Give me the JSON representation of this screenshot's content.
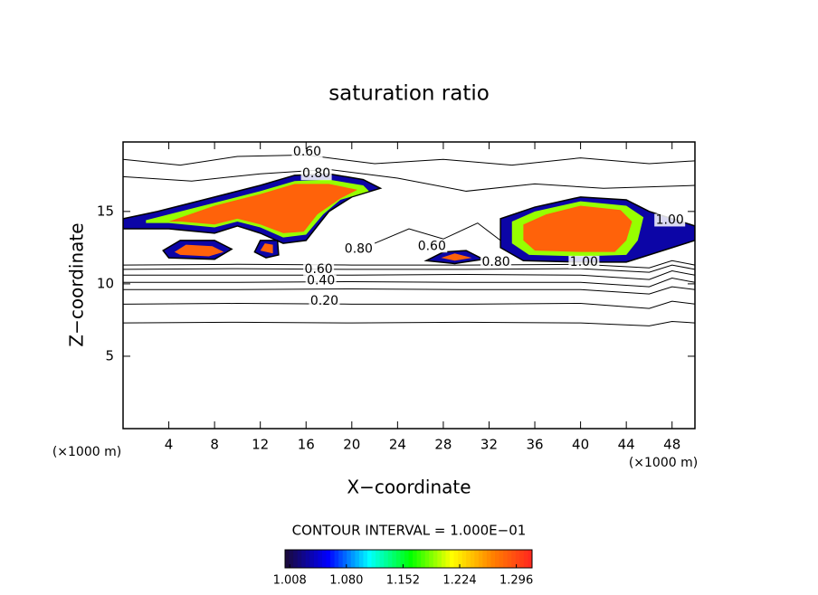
{
  "chart_data": {
    "type": "contour",
    "title": "saturation ratio",
    "xlabel": "X−coordinate",
    "ylabel": "Z−coordinate",
    "x_unit": "(×1000 m)",
    "y_unit": "(×1000 m)",
    "xlim": [
      0,
      50
    ],
    "ylim": [
      0,
      19.8
    ],
    "xticks": [
      4,
      8,
      12,
      16,
      20,
      24,
      28,
      32,
      36,
      40,
      44,
      48
    ],
    "yticks": [
      5,
      10,
      15
    ],
    "contour_interval": "CONTOUR INTERVAL = 1.000E−01",
    "colorbar": {
      "lim": [
        1.002,
        1.316
      ],
      "ticks": [
        {
          "value": 1.008,
          "label": "1.008"
        },
        {
          "value": 1.08,
          "label": "1.080"
        },
        {
          "value": 1.152,
          "label": "1.152"
        },
        {
          "value": 1.224,
          "label": "1.224"
        },
        {
          "value": 1.296,
          "label": "1.296"
        }
      ],
      "colors": [
        "#1a0a40",
        "#0000ff",
        "#00ffff",
        "#00ff00",
        "#ffff00",
        "#ff8000",
        "#ff2020"
      ]
    },
    "regions": [
      {
        "level": 1.03,
        "points": [
          [
            0,
            14.5
          ],
          [
            3,
            15
          ],
          [
            8,
            16
          ],
          [
            12,
            16.8
          ],
          [
            15,
            17.5
          ],
          [
            18,
            17.6
          ],
          [
            21,
            17.2
          ],
          [
            22.5,
            16.6
          ],
          [
            20,
            16
          ],
          [
            18,
            15
          ],
          [
            16,
            13
          ],
          [
            14,
            12.8
          ],
          [
            12,
            13.5
          ],
          [
            10,
            14
          ],
          [
            8,
            13.5
          ],
          [
            4,
            13.8
          ],
          [
            0,
            13.8
          ]
        ]
      },
      {
        "level": 1.19,
        "points": [
          [
            2,
            14.4
          ],
          [
            8,
            15.6
          ],
          [
            12,
            16.4
          ],
          [
            15,
            17.1
          ],
          [
            18,
            17.2
          ],
          [
            21,
            16.8
          ],
          [
            21.5,
            16.4
          ],
          [
            19,
            15.8
          ],
          [
            17.5,
            14.8
          ],
          [
            16,
            13.4
          ],
          [
            14,
            13.2
          ],
          [
            12,
            13.9
          ],
          [
            10,
            14.3
          ],
          [
            8,
            13.9
          ],
          [
            4,
            14.2
          ],
          [
            2,
            14.2
          ]
        ]
      },
      {
        "level": 1.28,
        "points": [
          [
            4,
            14.3
          ],
          [
            8,
            15.4
          ],
          [
            12,
            16.2
          ],
          [
            15,
            16.9
          ],
          [
            18,
            16.9
          ],
          [
            20.5,
            16.5
          ],
          [
            19,
            15.9
          ],
          [
            17,
            14.8
          ],
          [
            15.8,
            13.6
          ],
          [
            14,
            13.5
          ],
          [
            12,
            14.1
          ],
          [
            10,
            14.5
          ],
          [
            8,
            14.1
          ],
          [
            5,
            14.3
          ]
        ]
      },
      {
        "level": 1.03,
        "points": [
          [
            33,
            14.5
          ],
          [
            36,
            15.3
          ],
          [
            40,
            16
          ],
          [
            44,
            15.8
          ],
          [
            46,
            15
          ],
          [
            48,
            14.5
          ],
          [
            50,
            14
          ],
          [
            50,
            13
          ],
          [
            46,
            12
          ],
          [
            44,
            11.5
          ],
          [
            40,
            11.5
          ],
          [
            35,
            11.6
          ],
          [
            33,
            12.5
          ],
          [
            33,
            14
          ]
        ]
      },
      {
        "level": 1.19,
        "points": [
          [
            34,
            14.3
          ],
          [
            36,
            15
          ],
          [
            40,
            15.7
          ],
          [
            44,
            15.4
          ],
          [
            45.5,
            14.6
          ],
          [
            45,
            13
          ],
          [
            44,
            12
          ],
          [
            40,
            11.9
          ],
          [
            35.5,
            12
          ],
          [
            34,
            12.8
          ]
        ]
      },
      {
        "level": 1.28,
        "points": [
          [
            35,
            14.1
          ],
          [
            37,
            14.8
          ],
          [
            40,
            15.4
          ],
          [
            43.5,
            15.1
          ],
          [
            44.5,
            14.3
          ],
          [
            44,
            13
          ],
          [
            43,
            12.2
          ],
          [
            40,
            12.2
          ],
          [
            36,
            12.3
          ],
          [
            35,
            13
          ]
        ]
      },
      {
        "level": 1.03,
        "points": [
          [
            3.5,
            12.3
          ],
          [
            5,
            13
          ],
          [
            8,
            13
          ],
          [
            9.5,
            12.4
          ],
          [
            8,
            11.7
          ],
          [
            4,
            11.8
          ]
        ]
      },
      {
        "level": 1.28,
        "points": [
          [
            4.5,
            12.2
          ],
          [
            5.5,
            12.7
          ],
          [
            7.8,
            12.6
          ],
          [
            8.8,
            12.2
          ],
          [
            7.5,
            11.9
          ],
          [
            5,
            12
          ]
        ]
      },
      {
        "level": 1.03,
        "points": [
          [
            26.5,
            11.6
          ],
          [
            28,
            12.2
          ],
          [
            30,
            12.3
          ],
          [
            31.5,
            11.7
          ],
          [
            29,
            11.4
          ]
        ]
      },
      {
        "level": 1.28,
        "points": [
          [
            27.8,
            11.8
          ],
          [
            29,
            12.1
          ],
          [
            30.5,
            11.8
          ],
          [
            29,
            11.6
          ]
        ]
      },
      {
        "level": 1.03,
        "points": [
          [
            11.5,
            12.2
          ],
          [
            12,
            13
          ],
          [
            13.5,
            13
          ],
          [
            13.6,
            12
          ],
          [
            12.5,
            11.8
          ]
        ]
      },
      {
        "level": 1.28,
        "points": [
          [
            12,
            12.3
          ],
          [
            12.4,
            12.8
          ],
          [
            13.1,
            12.7
          ],
          [
            13.1,
            12.1
          ]
        ]
      }
    ],
    "contours": [
      {
        "level": 0.1,
        "points": [
          [
            0,
            7.3
          ],
          [
            10,
            7.35
          ],
          [
            20,
            7.3
          ],
          [
            30,
            7.35
          ],
          [
            40,
            7.3
          ],
          [
            46,
            7.1
          ],
          [
            48,
            7.4
          ],
          [
            50,
            7.3
          ]
        ]
      },
      {
        "level": 0.2,
        "points": [
          [
            0,
            8.6
          ],
          [
            10,
            8.65
          ],
          [
            20,
            8.6
          ],
          [
            30,
            8.6
          ],
          [
            40,
            8.65
          ],
          [
            46,
            8.3
          ],
          [
            48,
            8.8
          ],
          [
            50,
            8.6
          ]
        ]
      },
      {
        "level": 0.3,
        "points": [
          [
            0,
            9.6
          ],
          [
            10,
            9.6
          ],
          [
            20,
            9.65
          ],
          [
            30,
            9.6
          ],
          [
            40,
            9.6
          ],
          [
            46,
            9.3
          ],
          [
            48,
            9.8
          ],
          [
            50,
            9.6
          ]
        ]
      },
      {
        "level": 0.4,
        "points": [
          [
            0,
            10.1
          ],
          [
            10,
            10.1
          ],
          [
            20,
            10.15
          ],
          [
            30,
            10.1
          ],
          [
            40,
            10.1
          ],
          [
            46,
            9.8
          ],
          [
            48,
            10.4
          ],
          [
            50,
            10.1
          ]
        ]
      },
      {
        "level": 0.5,
        "points": [
          [
            0,
            10.6
          ],
          [
            10,
            10.6
          ],
          [
            20,
            10.6
          ],
          [
            30,
            10.65
          ],
          [
            40,
            10.6
          ],
          [
            46,
            10.3
          ],
          [
            48,
            10.9
          ],
          [
            50,
            10.6
          ]
        ]
      },
      {
        "level": 0.6,
        "points": [
          [
            0,
            11.0
          ],
          [
            10,
            11.05
          ],
          [
            20,
            11.0
          ],
          [
            30,
            11.0
          ],
          [
            40,
            11.05
          ],
          [
            46,
            10.8
          ],
          [
            48,
            11.3
          ],
          [
            50,
            11.0
          ]
        ]
      },
      {
        "level": 0.7,
        "points": [
          [
            0,
            11.3
          ],
          [
            10,
            11.35
          ],
          [
            20,
            11.3
          ],
          [
            30,
            11.3
          ],
          [
            40,
            11.35
          ],
          [
            46,
            11.1
          ],
          [
            48,
            11.6
          ],
          [
            50,
            11.3
          ]
        ]
      },
      {
        "level": 0.6,
        "points": [
          [
            0,
            18.6
          ],
          [
            5,
            18.2
          ],
          [
            10,
            18.8
          ],
          [
            16,
            18.9
          ],
          [
            22,
            18.3
          ],
          [
            28,
            18.6
          ],
          [
            34,
            18.2
          ],
          [
            40,
            18.7
          ],
          [
            46,
            18.3
          ],
          [
            50,
            18.5
          ]
        ]
      },
      {
        "level": 0.8,
        "points": [
          [
            0,
            17.4
          ],
          [
            6,
            17.1
          ],
          [
            12,
            17.6
          ],
          [
            18,
            17.9
          ],
          [
            24,
            17.3
          ],
          [
            30,
            16.4
          ],
          [
            36,
            16.9
          ],
          [
            42,
            16.6
          ],
          [
            50,
            16.8
          ]
        ]
      },
      {
        "level": 0.8,
        "points": [
          [
            22,
            12.8
          ],
          [
            25,
            13.8
          ],
          [
            28,
            13.1
          ],
          [
            31,
            14.2
          ],
          [
            33,
            13.0
          ]
        ]
      }
    ],
    "contour_labels": [
      {
        "text": "0.60",
        "x": 16.1,
        "y": 19.1
      },
      {
        "text": "0.80",
        "x": 16.9,
        "y": 17.6
      },
      {
        "text": "0.80",
        "x": 20.6,
        "y": 12.4
      },
      {
        "text": "0.60",
        "x": 17.1,
        "y": 11.0
      },
      {
        "text": "0.40",
        "x": 17.3,
        "y": 10.2
      },
      {
        "text": "0.20",
        "x": 17.6,
        "y": 8.8
      },
      {
        "text": "0.60",
        "x": 27.0,
        "y": 12.6
      },
      {
        "text": "0.80",
        "x": 32.6,
        "y": 11.5
      },
      {
        "text": "1.00",
        "x": 40.3,
        "y": 11.5
      },
      {
        "text": "1.00",
        "x": 47.8,
        "y": 14.4
      }
    ]
  }
}
